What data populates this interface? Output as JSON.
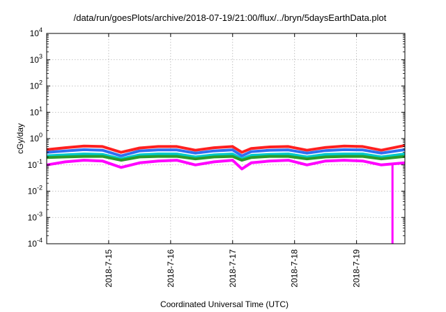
{
  "chart_data": {
    "type": "line",
    "title": "/data/run/goesPlots/archive/2018-07-19/21:00/flux/../bryn/5daysEarthData.plot",
    "xlabel": "Coordinated Universal Time (UTC)",
    "ylabel": "cGy/day",
    "y_scale": "log",
    "ylim": [
      0.0001,
      10000
    ],
    "xlim": [
      0.0,
      5.78
    ],
    "x_units": "days since 2018-7-14 00:00 UTC",
    "grid": true,
    "legend": "none",
    "y_ticks": [
      {
        "value": 0.0001,
        "mantissa": "10",
        "exp": "-4"
      },
      {
        "value": 0.001,
        "mantissa": "10",
        "exp": "-3"
      },
      {
        "value": 0.01,
        "mantissa": "10",
        "exp": "-2"
      },
      {
        "value": 0.1,
        "mantissa": "10",
        "exp": "-1"
      },
      {
        "value": 1,
        "mantissa": "10",
        "exp": "0"
      },
      {
        "value": 10,
        "mantissa": "10",
        "exp": "1"
      },
      {
        "value": 100,
        "mantissa": "10",
        "exp": "2"
      },
      {
        "value": 1000,
        "mantissa": "10",
        "exp": "3"
      },
      {
        "value": 10000,
        "mantissa": "10",
        "exp": "4"
      }
    ],
    "x_ticks": [
      {
        "value": 1,
        "label": "2018-7-15"
      },
      {
        "value": 2,
        "label": "2018-7-16"
      },
      {
        "value": 3,
        "label": "2018-7-17"
      },
      {
        "value": 4,
        "label": "2018-7-18"
      },
      {
        "value": 5,
        "label": "2018-7-19"
      }
    ],
    "x": [
      0.0,
      0.3,
      0.6,
      0.9,
      1.2,
      1.5,
      1.8,
      2.1,
      2.4,
      2.7,
      3.0,
      3.15,
      3.3,
      3.6,
      3.9,
      4.2,
      4.5,
      4.8,
      5.1,
      5.4,
      5.78
    ],
    "series": [
      {
        "color": "#ff2020",
        "values": [
          0.38,
          0.45,
          0.52,
          0.5,
          0.3,
          0.44,
          0.5,
          0.5,
          0.36,
          0.45,
          0.5,
          0.3,
          0.42,
          0.48,
          0.5,
          0.36,
          0.46,
          0.52,
          0.5,
          0.36,
          0.55
        ]
      },
      {
        "color": "#2f6ff0",
        "values": [
          0.3,
          0.34,
          0.38,
          0.36,
          0.22,
          0.34,
          0.37,
          0.37,
          0.28,
          0.34,
          0.37,
          0.22,
          0.32,
          0.36,
          0.37,
          0.28,
          0.35,
          0.38,
          0.37,
          0.28,
          0.38
        ]
      },
      {
        "color": "#00c8c8",
        "values": [
          0.22,
          0.24,
          0.26,
          0.25,
          0.17,
          0.24,
          0.26,
          0.26,
          0.2,
          0.24,
          0.26,
          0.17,
          0.23,
          0.25,
          0.26,
          0.2,
          0.25,
          0.26,
          0.26,
          0.2,
          0.26
        ]
      },
      {
        "color": "#2a9b2a",
        "values": [
          0.19,
          0.2,
          0.21,
          0.21,
          0.15,
          0.2,
          0.21,
          0.21,
          0.17,
          0.2,
          0.21,
          0.15,
          0.19,
          0.21,
          0.21,
          0.17,
          0.2,
          0.21,
          0.21,
          0.17,
          0.21
        ]
      },
      {
        "color": "#ff00ff",
        "values": [
          0.1,
          0.13,
          0.15,
          0.14,
          0.08,
          0.12,
          0.14,
          0.15,
          0.1,
          0.13,
          0.15,
          0.07,
          0.12,
          0.14,
          0.15,
          0.1,
          0.14,
          0.15,
          0.14,
          0.1,
          0.12
        ]
      }
    ],
    "annotations": [
      {
        "series": "#ff00ff",
        "type": "dropout",
        "x": 5.58,
        "value": 0.0001
      }
    ]
  }
}
